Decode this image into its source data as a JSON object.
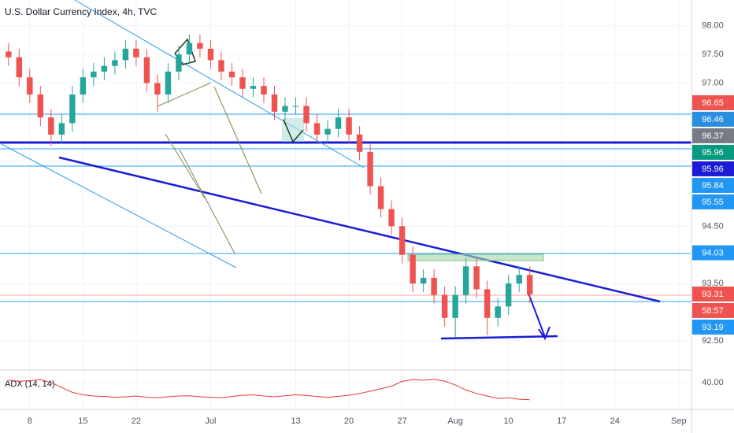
{
  "chart_data": {
    "type": "candlestick",
    "title": "U.S. Dollar Currency Index, 4h, TVC",
    "open": [
      97.55,
      97.45,
      97.1,
      96.8,
      96.4,
      96.1,
      96.3,
      96.8,
      97.1,
      97.2,
      97.3,
      97.4,
      97.6,
      97.45,
      97.0,
      96.8,
      97.2,
      97.5,
      97.7,
      97.6,
      97.4,
      97.2,
      97.1,
      96.9,
      96.95,
      96.8,
      96.5,
      96.6,
      96.6,
      96.3,
      96.1,
      96.2,
      96.4,
      96.1,
      95.8,
      95.2,
      94.8,
      94.5,
      94.0,
      93.5,
      93.6,
      93.3,
      92.9,
      93.3,
      93.8,
      93.4,
      92.9,
      93.1,
      93.5,
      93.65
    ],
    "high": [
      97.7,
      97.6,
      97.25,
      96.95,
      96.55,
      96.45,
      96.95,
      97.25,
      97.35,
      97.45,
      97.55,
      97.75,
      97.75,
      97.6,
      97.15,
      97.35,
      97.65,
      97.85,
      97.85,
      97.75,
      97.55,
      97.35,
      97.25,
      97.1,
      97.1,
      96.95,
      96.75,
      96.75,
      96.75,
      96.45,
      96.35,
      96.55,
      96.55,
      96.25,
      95.95,
      95.35,
      94.95,
      94.65,
      94.15,
      93.75,
      93.75,
      93.45,
      93.45,
      93.95,
      93.95,
      93.55,
      93.25,
      93.65,
      93.8,
      93.8
    ],
    "low": [
      97.3,
      96.95,
      96.65,
      96.25,
      95.9,
      95.95,
      96.15,
      96.65,
      96.95,
      97.05,
      97.15,
      97.25,
      97.3,
      96.85,
      96.5,
      96.65,
      97.05,
      97.35,
      97.45,
      97.25,
      97.05,
      96.95,
      96.75,
      96.75,
      96.65,
      96.35,
      96.35,
      96.45,
      96.15,
      95.95,
      95.95,
      96.05,
      95.95,
      95.65,
      95.05,
      94.65,
      94.35,
      93.85,
      93.35,
      93.35,
      93.15,
      92.75,
      92.55,
      93.15,
      93.25,
      92.6,
      92.75,
      92.95,
      93.35,
      93.16
    ],
    "close": [
      97.45,
      97.1,
      96.8,
      96.4,
      96.1,
      96.3,
      96.8,
      97.1,
      97.2,
      97.3,
      97.4,
      97.6,
      97.45,
      97.0,
      96.8,
      97.2,
      97.5,
      97.7,
      97.6,
      97.4,
      97.2,
      97.1,
      96.9,
      96.95,
      96.8,
      96.5,
      96.6,
      96.6,
      96.3,
      96.1,
      96.2,
      96.4,
      96.1,
      95.8,
      95.2,
      94.8,
      94.5,
      94.0,
      93.5,
      93.6,
      93.3,
      92.9,
      93.3,
      93.8,
      93.4,
      92.9,
      93.1,
      93.5,
      93.65,
      93.31
    ],
    "up_color": "#26a69a",
    "down_color": "#ef5350",
    "xlim": [
      -0.8,
      64.2
    ],
    "xticks": [
      {
        "value": 2,
        "label": "8"
      },
      {
        "value": 7,
        "label": "15"
      },
      {
        "value": 12,
        "label": "22"
      },
      {
        "value": 19,
        "label": "Jul"
      },
      {
        "value": 27,
        "label": "13"
      },
      {
        "value": 32,
        "label": "20"
      },
      {
        "value": 37,
        "label": "27"
      },
      {
        "value": 42,
        "label": "Aug"
      },
      {
        "value": 47,
        "label": "10"
      },
      {
        "value": 52,
        "label": "17"
      },
      {
        "value": 57,
        "label": "24"
      },
      {
        "value": 63,
        "label": "Sep"
      }
    ],
    "ylim": [
      91.99,
      98.45
    ],
    "yticks": [
      {
        "value": 98,
        "label": "98.00"
      },
      {
        "value": 97.5,
        "label": "97.50"
      },
      {
        "value": 97,
        "label": "97.00"
      },
      {
        "value": 94.5,
        "label": "94.50"
      },
      {
        "value": 93.5,
        "label": "93.50"
      },
      {
        "value": 92.5,
        "label": "92.50"
      }
    ],
    "grid": true,
    "price_labels": [
      {
        "value": 96.65,
        "color": "#ef5350"
      },
      {
        "value": 96.46,
        "color": "#2a8fe0"
      },
      {
        "value": 96.37,
        "color": "#787b86"
      },
      {
        "value": 95.96,
        "color": "#089981"
      },
      {
        "value": 95.96,
        "color": "#1c1cd4"
      },
      {
        "value": 95.84,
        "color": "#2196f3"
      },
      {
        "value": 95.55,
        "color": "#2196f3"
      },
      {
        "value": 94.03,
        "color": "#2196f3"
      },
      {
        "value": 93.31,
        "color": "#ef5350"
      },
      {
        "value": 93.19,
        "color": "#2196f3"
      }
    ],
    "countdown": "58:57",
    "countdown_color": "#ef5350",
    "indicator": {
      "label": "ADX (14, 14)",
      "color": "#e53935",
      "values": [
        41,
        40.5,
        40.8,
        41.2,
        40,
        38,
        36,
        35,
        34.5,
        34.3,
        34,
        34.2,
        34.5,
        34,
        33.8,
        34.2,
        34.5,
        34.6,
        34.2,
        34,
        33.8,
        34.3,
        34.8,
        35,
        34.5,
        34.2,
        34.6,
        35,
        34.7,
        34.3,
        34,
        34.4,
        34.8,
        35.5,
        36.5,
        37.5,
        38.5,
        40.5,
        41.2,
        41,
        41.3,
        40.6,
        39,
        37,
        35.5,
        34.5,
        33.5,
        33.8,
        33.2,
        33
      ],
      "ylim": [
        30,
        44.5
      ],
      "yticks": [
        {
          "value": 40,
          "label": "40.00"
        }
      ]
    }
  }
}
